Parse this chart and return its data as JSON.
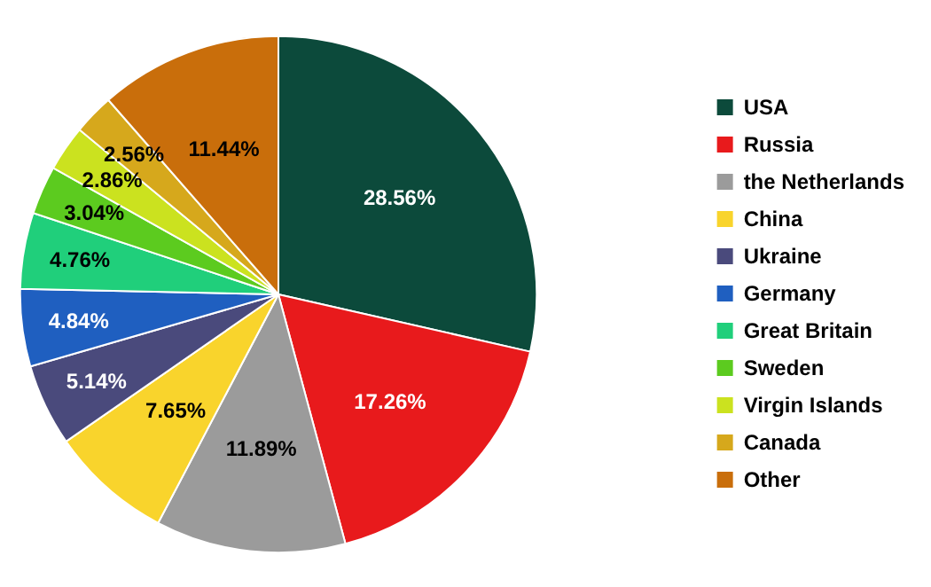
{
  "chart_data": {
    "type": "pie",
    "categories": [
      "USA",
      "Russia",
      "the Netherlands",
      "China",
      "Ukraine",
      "Germany",
      "Great Britain",
      "Sweden",
      "Virgin Islands",
      "Canada",
      "Other"
    ],
    "values": [
      28.56,
      17.26,
      11.89,
      7.65,
      5.14,
      4.84,
      4.76,
      3.04,
      2.86,
      2.56,
      11.44
    ],
    "value_labels": [
      "28.56%",
      "17.26%",
      "11.89%",
      "7.65%",
      "5.14%",
      "4.84%",
      "4.76%",
      "3.04%",
      "2.86%",
      "2.56%",
      "11.44%"
    ],
    "colors": [
      "#0c4a3b",
      "#e81a1c",
      "#9b9b9b",
      "#f9d42c",
      "#4a4a7c",
      "#1f5fc0",
      "#20cf7b",
      "#5ccb1f",
      "#cbe21f",
      "#d6a81c",
      "#c96e0b"
    ],
    "legend": "right"
  }
}
